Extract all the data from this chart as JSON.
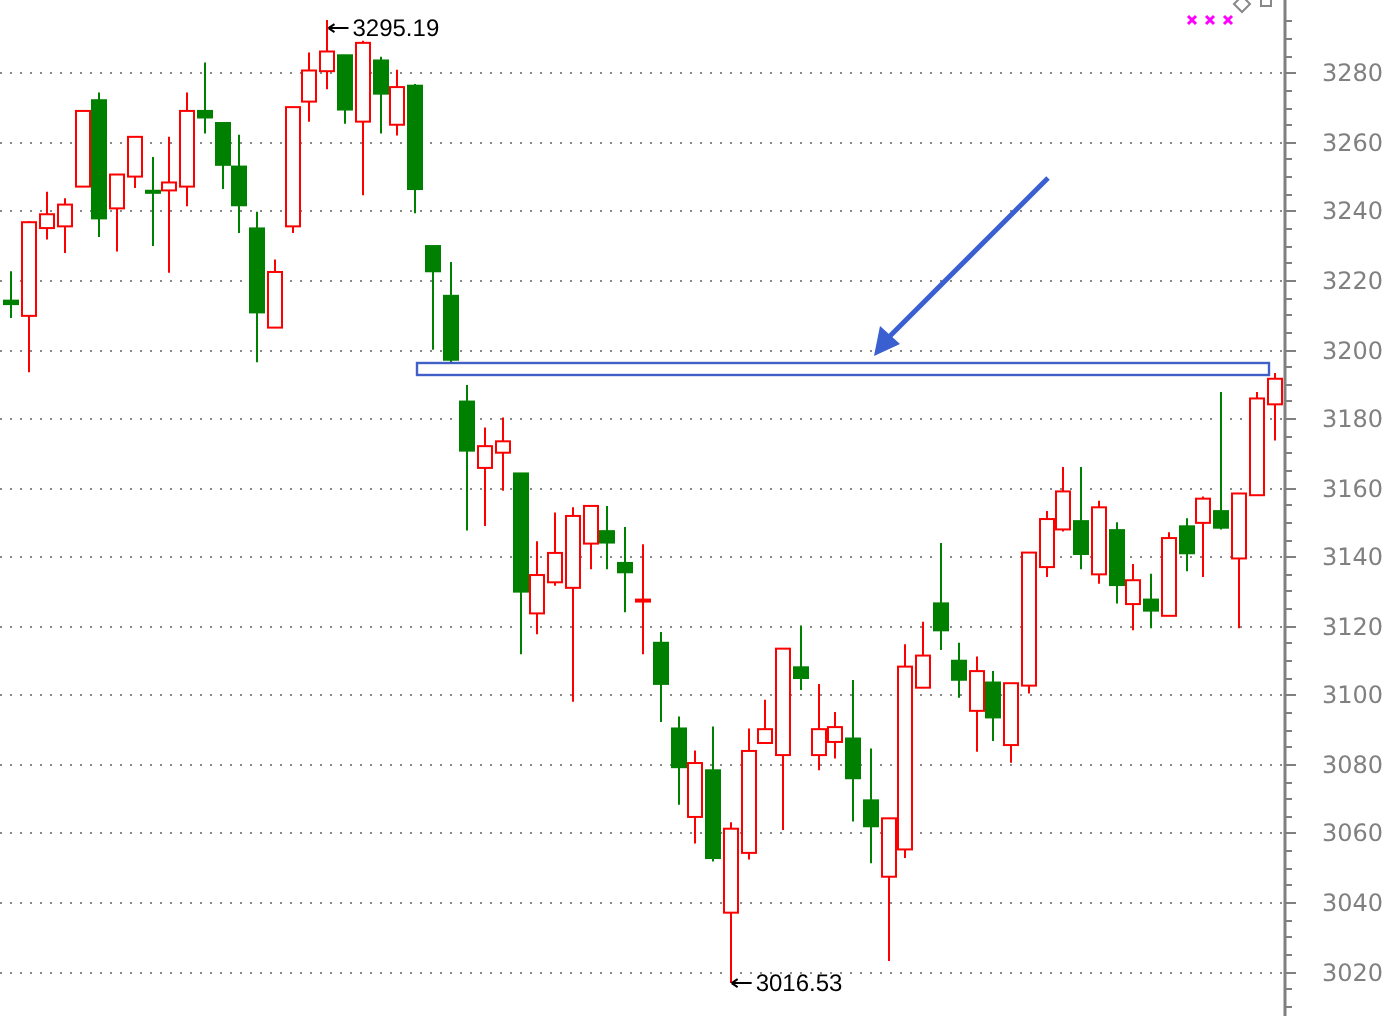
{
  "chart_data": {
    "type": "candlestick",
    "categories": [
      null,
      null,
      null,
      null,
      null,
      null,
      null,
      null,
      null,
      null,
      null,
      null,
      null,
      null,
      null,
      null,
      null,
      null,
      null,
      null,
      null,
      null,
      null,
      null,
      null,
      null,
      null,
      null,
      null,
      null,
      null,
      null,
      null,
      null,
      null,
      null,
      null,
      null,
      null,
      null,
      null,
      null,
      null,
      null,
      null,
      null,
      null,
      null,
      null,
      null,
      null,
      null,
      null,
      null,
      null,
      null,
      null,
      null,
      null,
      null,
      null,
      null,
      null,
      null,
      null,
      null,
      null,
      null,
      null,
      null,
      null,
      null,
      null
    ],
    "ohlc": [
      [
        3214,
        3222.5,
        3209,
        3213
      ],
      [
        3209.6,
        3237,
        3193.3,
        3236.7
      ],
      [
        3235,
        3245.5,
        3231.7,
        3239
      ],
      [
        3235.5,
        3243.6,
        3227.8,
        3241.8
      ],
      [
        3247,
        3269,
        3247,
        3268.9
      ],
      [
        3272,
        3274.2,
        3232.4,
        3237.8
      ],
      [
        3240.7,
        3250.5,
        3228.2,
        3250.5
      ],
      [
        3249.9,
        3261.4,
        3246.6,
        3261.4
      ],
      [
        3245.8,
        3255.6,
        3229.8,
        3245.2
      ],
      [
        3245.9,
        3261.4,
        3222.1,
        3248.2
      ],
      [
        3247,
        3274.2,
        3241.3,
        3268.9
      ],
      [
        3268.9,
        3282.9,
        3262.4,
        3267
      ],
      [
        3265.4,
        3265.4,
        3246.3,
        3253.3
      ],
      [
        3252.8,
        3262,
        3233.6,
        3241.6
      ],
      [
        3234.9,
        3239.7,
        3196.2,
        3210.6
      ],
      [
        3206.2,
        3225.9,
        3206.2,
        3222.3
      ],
      [
        3235.5,
        3270,
        3233.6,
        3270
      ],
      [
        3271.6,
        3285.8,
        3265.8,
        3280.6
      ],
      [
        3280.4,
        3295.19,
        3275.2,
        3286.1
      ],
      [
        3285,
        3285,
        3265.2,
        3269.3
      ],
      [
        3265.8,
        3289.2,
        3244.5,
        3288.6
      ],
      [
        3283.5,
        3284.6,
        3262.4,
        3273.9
      ],
      [
        3264.9,
        3280.8,
        3261.8,
        3275.8
      ],
      [
        3276.2,
        3276.7,
        3239.3,
        3246.3
      ],
      [
        3229.8,
        3229.8,
        3199.8,
        3222.5
      ],
      [
        3215.4,
        3225.2,
        3196,
        3196.9
      ],
      [
        3184.8,
        3189.6,
        3147.5,
        3170.6
      ],
      [
        3165.6,
        3177.3,
        3148.8,
        3171.9
      ],
      [
        3170,
        3180.2,
        3159,
        3173.3
      ],
      [
        3164,
        3164,
        3111.7,
        3129.8
      ],
      [
        3123.5,
        3144.4,
        3117.5,
        3134.6
      ],
      [
        3132.5,
        3152.7,
        3131.5,
        3141
      ],
      [
        3130.9,
        3154.2,
        3097.9,
        3151.7
      ],
      [
        3143.7,
        3154.6,
        3136.3,
        3154.6
      ],
      [
        3147.3,
        3154.6,
        3136.3,
        3144
      ],
      [
        3138.1,
        3148.5,
        3123.8,
        3135.4
      ],
      [
        3127,
        3143.5,
        3111.7,
        3127.5
      ],
      [
        3115,
        3118.1,
        3092.1,
        3103.1
      ],
      [
        3090.2,
        3093.7,
        3068.1,
        3079
      ],
      [
        3064.6,
        3083.8,
        3056.9,
        3080.2
      ],
      [
        3078.1,
        3090.8,
        3051.7,
        3052.7
      ],
      [
        3036.9,
        3063.1,
        3016.53,
        3061.2
      ],
      [
        3054.2,
        3090.2,
        3052.3,
        3083.7
      ],
      [
        3086,
        3098.5,
        3086,
        3090
      ],
      [
        3082.5,
        3113.3,
        3060.8,
        3113.3
      ],
      [
        3107.9,
        3120,
        3101.3,
        3104.8
      ],
      [
        3082.5,
        3103.1,
        3078.1,
        3090
      ],
      [
        3086.3,
        3095,
        3081.5,
        3090.6
      ],
      [
        3087.3,
        3104.2,
        3063.3,
        3075.8
      ],
      [
        3069.4,
        3084.4,
        3051.2,
        3061.9
      ],
      [
        3047.3,
        3064.2,
        3022.9,
        3064.2
      ],
      [
        3055.2,
        3114.6,
        3052.7,
        3108.1
      ],
      [
        3102,
        3121.1,
        3102,
        3111.3
      ],
      [
        3126.4,
        3143.9,
        3112.9,
        3118.6
      ],
      [
        3109.8,
        3115,
        3099.1,
        3104.3
      ],
      [
        3095.3,
        3111,
        3083.5,
        3106.8
      ],
      [
        3103.5,
        3106.8,
        3086.6,
        3093.4
      ],
      [
        3085.4,
        3103.3,
        3080.3,
        3103.3
      ],
      [
        3102.6,
        3141.1,
        3100.3,
        3141.1
      ],
      [
        3136.9,
        3153.1,
        3134,
        3150.8
      ],
      [
        3147.8,
        3165.9,
        3147.2,
        3158.8
      ],
      [
        3150.2,
        3165.9,
        3136.3,
        3140.7
      ],
      [
        3134.8,
        3156.1,
        3132.1,
        3154.2
      ],
      [
        3147.6,
        3149.9,
        3126.4,
        3131.7
      ],
      [
        3126.2,
        3137.8,
        3118.6,
        3133.1
      ],
      [
        3127.5,
        3135,
        3119.2,
        3124.3
      ],
      [
        3122.8,
        3147,
        3122.8,
        3145.3
      ],
      [
        3148.7,
        3151,
        3135.7,
        3140.9
      ],
      [
        3149.7,
        3157.3,
        3134,
        3156.7
      ],
      [
        3153.1,
        3187.6,
        3147.8,
        3148.3
      ],
      [
        3139.4,
        3158.2,
        3119.2,
        3158.2
      ],
      [
        3157.7,
        3187.6,
        3157.7,
        3185.7
      ],
      [
        3184,
        3193.1,
        3173.5,
        3191.4
      ]
    ],
    "colors": [
      "#008000",
      "#ff0000",
      "#ff0000",
      "#ff0000",
      "#ff0000",
      "#008000",
      "#ff0000",
      "#ff0000",
      "#008000",
      "#ff0000",
      "#ff0000",
      "#008000",
      "#008000",
      "#008000",
      "#008000",
      "#ff0000",
      "#ff0000",
      "#ff0000",
      "#ff0000",
      "#008000",
      "#ff0000",
      "#008000",
      "#ff0000",
      "#008000",
      "#008000",
      "#008000",
      "#008000",
      "#ff0000",
      "#ff0000",
      "#008000",
      "#ff0000",
      "#ff0000",
      "#ff0000",
      "#ff0000",
      "#008000",
      "#008000",
      "#ff0000",
      "#008000",
      "#008000",
      "#ff0000",
      "#008000",
      "#ff0000",
      "#ff0000",
      "#ff0000",
      "#ff0000",
      "#008000",
      "#ff0000",
      "#ff0000",
      "#008000",
      "#008000",
      "#ff0000",
      "#ff0000",
      "#ff0000",
      "#008000",
      "#008000",
      "#ff0000",
      "#008000",
      "#ff0000",
      "#ff0000",
      "#ff0000",
      "#ff0000",
      "#008000",
      "#ff0000",
      "#008000",
      "#ff0000",
      "#008000",
      "#ff0000",
      "#008000",
      "#ff0000",
      "#008000",
      "#ff0000",
      "#ff0000",
      "#ff0000"
    ],
    "ylim": [
      3007,
      3301
    ],
    "yticks": [
      {
        "value": 3010,
        "label": null
      },
      {
        "value": 3015,
        "label": null
      },
      3020,
      {
        "value": 3025,
        "label": null
      },
      {
        "value": 3030,
        "label": null
      },
      {
        "value": 3035,
        "label": null
      },
      3040,
      {
        "value": 3045,
        "label": null
      },
      {
        "value": 3050,
        "label": null
      },
      {
        "value": 3055,
        "label": null
      },
      3060,
      {
        "value": 3065,
        "label": null
      },
      {
        "value": 3070,
        "label": null
      },
      {
        "value": 3075,
        "label": null
      },
      3080,
      {
        "value": 3085,
        "label": null
      },
      {
        "value": 3090,
        "label": null
      },
      {
        "value": 3095,
        "label": null
      },
      3100,
      {
        "value": 3105,
        "label": null
      },
      {
        "value": 3110,
        "label": null
      },
      {
        "value": 3115,
        "label": null
      },
      3120,
      {
        "value": 3125,
        "label": null
      },
      {
        "value": 3130,
        "label": null
      },
      {
        "value": 3135,
        "label": null
      },
      3140,
      {
        "value": 3145,
        "label": null
      },
      {
        "value": 3150,
        "label": null
      },
      {
        "value": 3155,
        "label": null
      },
      3160,
      {
        "value": 3165,
        "label": null
      },
      {
        "value": 3170,
        "label": null
      },
      {
        "value": 3175,
        "label": null
      },
      3180,
      {
        "value": 3185,
        "label": null
      },
      {
        "value": 3190,
        "label": null
      },
      {
        "value": 3195,
        "label": null
      },
      3200,
      {
        "value": 3205,
        "label": null
      },
      {
        "value": 3210,
        "label": null
      },
      {
        "value": 3215,
        "label": null
      },
      3220,
      {
        "value": 3225,
        "label": null
      },
      {
        "value": 3230,
        "label": null
      },
      {
        "value": 3235,
        "label": null
      },
      3240,
      {
        "value": 3245,
        "label": null
      },
      {
        "value": 3250,
        "label": null
      },
      {
        "value": 3255,
        "label": null
      },
      3260,
      {
        "value": 3265,
        "label": null
      },
      {
        "value": 3270,
        "label": null
      },
      {
        "value": 3275,
        "label": null
      },
      3280,
      {
        "value": 3285,
        "label": null
      },
      {
        "value": 3290,
        "label": null
      },
      {
        "value": 3295,
        "label": null
      }
    ],
    "grid": "y",
    "tick_labels": "y",
    "annotations": [
      "3295.19",
      "3016.53"
    ]
  }
}
